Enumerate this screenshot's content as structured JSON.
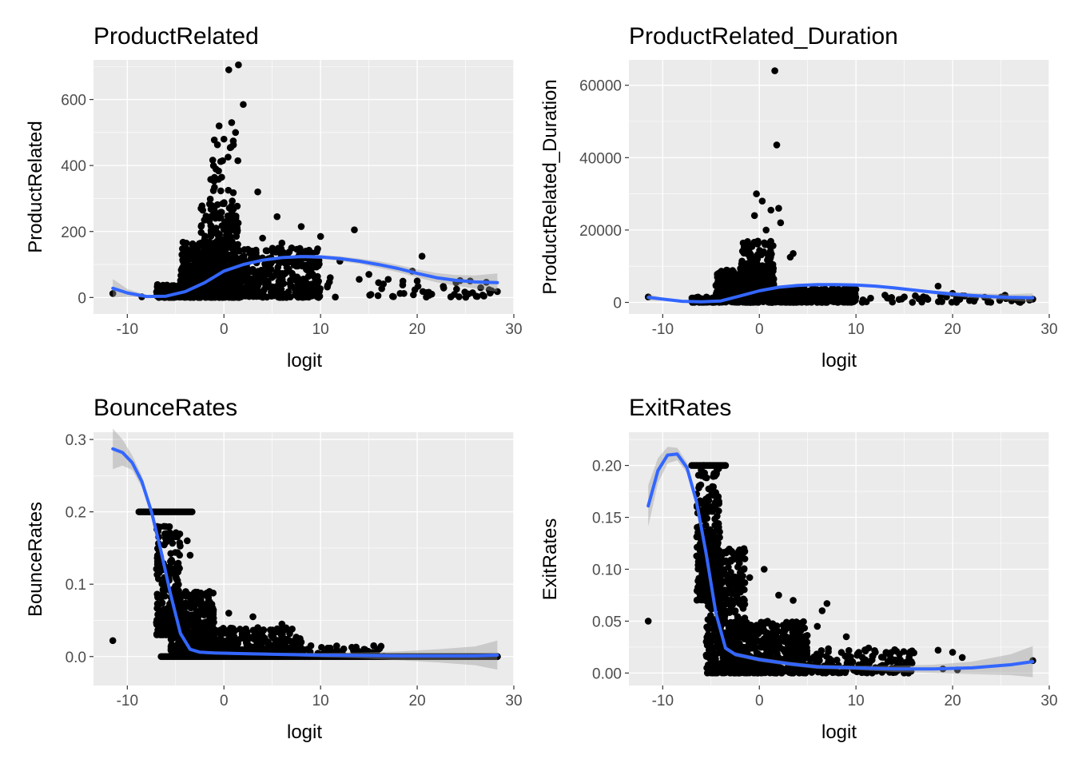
{
  "chart_data": [
    {
      "type": "scatter",
      "title": "ProductRelated",
      "xlabel": "logit",
      "ylabel": "ProductRelated",
      "xlim": [
        -13.5,
        30
      ],
      "ylim": [
        -50,
        720
      ],
      "x_ticks": [
        -10,
        0,
        10,
        20,
        30
      ],
      "x_tick_labels": [
        "-10",
        "0",
        "10",
        "20",
        "30"
      ],
      "y_ticks": [
        0,
        200,
        400,
        600
      ],
      "y_tick_labels": [
        "0",
        "200",
        "400",
        "600"
      ],
      "grid": true,
      "clusters": [
        {
          "x_range": [
            -4.5,
            1.5
          ],
          "y_range": [
            0,
            170
          ],
          "count": 520
        },
        {
          "x_range": [
            -2.5,
            1.5
          ],
          "y_range": [
            40,
            300
          ],
          "count": 230
        },
        {
          "x_range": [
            -1.5,
            1.5
          ],
          "y_range": [
            150,
            480
          ],
          "count": 60
        },
        {
          "x_range": [
            -7,
            -4.5
          ],
          "y_range": [
            0,
            40
          ],
          "count": 90
        },
        {
          "x_range": [
            1,
            10
          ],
          "y_range": [
            0,
            150
          ],
          "count": 320
        },
        {
          "x_range": [
            9,
            28
          ],
          "y_range": [
            0,
            60
          ],
          "count": 45
        }
      ],
      "points": [
        {
          "x": -11.5,
          "y": 12
        },
        {
          "x": -8.5,
          "y": 2
        },
        {
          "x": 0.5,
          "y": 690
        },
        {
          "x": 1.5,
          "y": 705
        },
        {
          "x": 2,
          "y": 585
        },
        {
          "x": -0.5,
          "y": 520
        },
        {
          "x": 0.8,
          "y": 530
        },
        {
          "x": 1.2,
          "y": 500
        },
        {
          "x": 0,
          "y": 480
        },
        {
          "x": 3.5,
          "y": 320
        },
        {
          "x": 5.5,
          "y": 245
        },
        {
          "x": 8,
          "y": 215
        },
        {
          "x": 13.5,
          "y": 205
        },
        {
          "x": 10,
          "y": 185
        },
        {
          "x": 4,
          "y": 180
        },
        {
          "x": 6,
          "y": 165
        },
        {
          "x": 7,
          "y": 150
        },
        {
          "x": 12,
          "y": 110
        },
        {
          "x": 15,
          "y": 70
        },
        {
          "x": 16,
          "y": 45
        },
        {
          "x": 17,
          "y": 55
        },
        {
          "x": 19.5,
          "y": 80
        },
        {
          "x": 20,
          "y": 50
        },
        {
          "x": 20.5,
          "y": 125
        },
        {
          "x": 21,
          "y": 15
        },
        {
          "x": 21.5,
          "y": 10
        },
        {
          "x": 28.3,
          "y": 18
        },
        {
          "x": 18.5,
          "y": 38
        },
        {
          "x": 14,
          "y": 55
        },
        {
          "x": 11,
          "y": 60
        }
      ],
      "series": [
        {
          "name": "smooth",
          "color": "#3366ff",
          "x": [
            -11.5,
            -10,
            -8,
            -6,
            -4,
            -2,
            0,
            2,
            4,
            6,
            8,
            10,
            12,
            14,
            16,
            18,
            20,
            22,
            24,
            26,
            28.3
          ],
          "y": [
            28,
            14,
            3,
            4,
            18,
            45,
            80,
            100,
            113,
            121,
            124,
            123,
            118,
            110,
            100,
            88,
            73,
            60,
            52,
            47,
            45
          ],
          "se_half_width": [
            28,
            12,
            4,
            3,
            3,
            3,
            3,
            3,
            4,
            4,
            5,
            6,
            7,
            8,
            10,
            11,
            12,
            14,
            16,
            20,
            28
          ]
        }
      ]
    },
    {
      "type": "scatter",
      "title": "ProductRelated_Duration",
      "xlabel": "logit",
      "ylabel": "ProductRelated_Duration",
      "xlim": [
        -13.5,
        30
      ],
      "ylim": [
        -3200,
        67000
      ],
      "x_ticks": [
        -10,
        0,
        10,
        20,
        30
      ],
      "x_tick_labels": [
        "-10",
        "0",
        "10",
        "20",
        "30"
      ],
      "y_ticks": [
        0,
        20000,
        40000,
        60000
      ],
      "y_tick_labels": [
        "0",
        "20000",
        "40000",
        "60000"
      ],
      "grid": true,
      "clusters": [
        {
          "x_range": [
            -4.5,
            1.5
          ],
          "y_range": [
            0,
            9000
          ],
          "count": 460
        },
        {
          "x_range": [
            -2,
            1.5
          ],
          "y_range": [
            4000,
            17000
          ],
          "count": 160
        },
        {
          "x_range": [
            -7,
            -4.5
          ],
          "y_range": [
            0,
            1500
          ],
          "count": 80
        },
        {
          "x_range": [
            1,
            10
          ],
          "y_range": [
            0,
            4000
          ],
          "count": 300
        },
        {
          "x_range": [
            9,
            28
          ],
          "y_range": [
            0,
            2000
          ],
          "count": 45
        }
      ],
      "points": [
        {
          "x": -11.5,
          "y": 1500
        },
        {
          "x": 1.6,
          "y": 64000
        },
        {
          "x": 1.8,
          "y": 43500
        },
        {
          "x": -0.3,
          "y": 30000
        },
        {
          "x": 0.3,
          "y": 28000
        },
        {
          "x": -0.5,
          "y": 24000
        },
        {
          "x": 1.2,
          "y": 25500
        },
        {
          "x": 2,
          "y": 26000
        },
        {
          "x": 2.2,
          "y": 22000
        },
        {
          "x": 0.7,
          "y": 20000
        },
        {
          "x": 3.5,
          "y": 13500
        },
        {
          "x": 3.2,
          "y": 12500
        },
        {
          "x": 18.5,
          "y": 4500
        },
        {
          "x": 20,
          "y": 2500
        },
        {
          "x": 15,
          "y": 1500
        },
        {
          "x": 13,
          "y": 2000
        },
        {
          "x": 16.5,
          "y": 1000
        },
        {
          "x": 21,
          "y": 1800
        },
        {
          "x": 28.3,
          "y": 900
        }
      ],
      "series": [
        {
          "name": "smooth",
          "color": "#3366ff",
          "x": [
            -11.5,
            -10,
            -8,
            -6,
            -4,
            -2,
            0,
            2,
            4,
            6,
            8,
            10,
            12,
            14,
            16,
            18,
            20,
            22,
            24,
            26,
            28.3
          ],
          "y": [
            1400,
            900,
            300,
            150,
            400,
            1800,
            3200,
            4200,
            4700,
            4900,
            4900,
            4800,
            4500,
            4000,
            3400,
            2800,
            2300,
            1900,
            1600,
            1400,
            1300
          ],
          "se_half_width": [
            900,
            400,
            150,
            100,
            100,
            100,
            150,
            150,
            200,
            200,
            250,
            300,
            350,
            400,
            450,
            500,
            600,
            700,
            800,
            900,
            1200
          ]
        }
      ]
    },
    {
      "type": "scatter",
      "title": "BounceRates",
      "xlabel": "logit",
      "ylabel": "BounceRates",
      "xlim": [
        -13.5,
        30
      ],
      "ylim": [
        -0.04,
        0.31
      ],
      "x_ticks": [
        -10,
        0,
        10,
        20,
        30
      ],
      "x_tick_labels": [
        "-10",
        "0",
        "10",
        "20",
        "30"
      ],
      "y_ticks": [
        0.0,
        0.1,
        0.2,
        0.3
      ],
      "y_tick_labels": [
        "0.0",
        "0.1",
        "0.2",
        "0.3"
      ],
      "grid": true,
      "clusters": [
        {
          "x_range": [
            -7,
            -4.5
          ],
          "y_range": [
            0.03,
            0.18
          ],
          "count": 220
        },
        {
          "x_range": [
            -5.5,
            -1
          ],
          "y_range": [
            0,
            0.09
          ],
          "count": 420
        },
        {
          "x_range": [
            -3,
            8
          ],
          "y_range": [
            0,
            0.04
          ],
          "count": 340
        },
        {
          "x_range": [
            0,
            17
          ],
          "y_range": [
            0,
            0.015
          ],
          "count": 120
        }
      ],
      "line_segments": [
        {
          "x_start": -8.8,
          "x_end": -3.3,
          "y": 0.2
        },
        {
          "x_start": -6.5,
          "x_end": 28.3,
          "y": 0.0
        }
      ],
      "points": [
        {
          "x": -11.5,
          "y": 0.022
        },
        {
          "x": -6.2,
          "y": 0.18
        },
        {
          "x": -5.8,
          "y": 0.165
        },
        {
          "x": -3.8,
          "y": 0.16
        },
        {
          "x": -3.5,
          "y": 0.14
        },
        {
          "x": -1.5,
          "y": 0.09
        },
        {
          "x": 0.5,
          "y": 0.06
        },
        {
          "x": 3,
          "y": 0.055
        },
        {
          "x": 3.5,
          "y": 0.04
        },
        {
          "x": 6,
          "y": 0.045
        },
        {
          "x": 8,
          "y": 0.02
        },
        {
          "x": 9,
          "y": 0.015
        },
        {
          "x": 14.5,
          "y": 0.01
        },
        {
          "x": 15.5,
          "y": 0.015
        },
        {
          "x": 28.3,
          "y": 0.0
        }
      ],
      "series": [
        {
          "name": "smooth",
          "color": "#3366ff",
          "x": [
            -11.5,
            -10.5,
            -9.5,
            -8.5,
            -7.5,
            -6.5,
            -5.5,
            -4.5,
            -3.5,
            -2.5,
            -1,
            2,
            6,
            10,
            14,
            18,
            22,
            26,
            28.3
          ],
          "y": [
            0.287,
            0.282,
            0.268,
            0.242,
            0.2,
            0.145,
            0.085,
            0.032,
            0.01,
            0.006,
            0.005,
            0.004,
            0.003,
            0.002,
            0.0015,
            0.001,
            0.001,
            0.001,
            0.002
          ],
          "se_half_width": [
            0.028,
            0.018,
            0.01,
            0.008,
            0.006,
            0.005,
            0.004,
            0.003,
            0.002,
            0.002,
            0.002,
            0.002,
            0.002,
            0.003,
            0.004,
            0.006,
            0.009,
            0.013,
            0.02
          ]
        }
      ]
    },
    {
      "type": "scatter",
      "title": "ExitRates",
      "xlabel": "logit",
      "ylabel": "ExitRates",
      "xlim": [
        -13.5,
        30
      ],
      "ylim": [
        -0.012,
        0.232
      ],
      "x_ticks": [
        -10,
        0,
        10,
        20,
        30
      ],
      "x_tick_labels": [
        "-10",
        "0",
        "10",
        "20",
        "30"
      ],
      "y_ticks": [
        0.0,
        0.05,
        0.1,
        0.15,
        0.2
      ],
      "y_tick_labels": [
        "0.00",
        "0.05",
        "0.10",
        "0.15",
        "0.20"
      ],
      "grid": true,
      "clusters": [
        {
          "x_range": [
            -6.5,
            -4
          ],
          "y_range": [
            0.07,
            0.2
          ],
          "count": 300
        },
        {
          "x_range": [
            -5.5,
            -1.5
          ],
          "y_range": [
            0,
            0.12
          ],
          "count": 480
        },
        {
          "x_range": [
            -3,
            5
          ],
          "y_range": [
            0,
            0.05
          ],
          "count": 460
        },
        {
          "x_range": [
            3,
            16
          ],
          "y_range": [
            0,
            0.025
          ],
          "count": 200
        }
      ],
      "line_segments": [
        {
          "x_start": -7,
          "x_end": -3.5,
          "y": 0.2
        }
      ],
      "points": [
        {
          "x": -11.5,
          "y": 0.05
        },
        {
          "x": -1.5,
          "y": 0.11
        },
        {
          "x": 0.5,
          "y": 0.1
        },
        {
          "x": -1,
          "y": 0.092
        },
        {
          "x": 2,
          "y": 0.075
        },
        {
          "x": 3.5,
          "y": 0.07
        },
        {
          "x": 6.5,
          "y": 0.06
        },
        {
          "x": 7,
          "y": 0.067
        },
        {
          "x": 6,
          "y": 0.045
        },
        {
          "x": 9,
          "y": 0.035
        },
        {
          "x": 12,
          "y": 0.02
        },
        {
          "x": 14.5,
          "y": 0.018
        },
        {
          "x": 15.5,
          "y": 0.015
        },
        {
          "x": 18.5,
          "y": 0.022
        },
        {
          "x": 20,
          "y": 0.02
        },
        {
          "x": 21,
          "y": 0.015
        },
        {
          "x": 20.5,
          "y": 0.003
        },
        {
          "x": 19,
          "y": 0.004
        },
        {
          "x": 28.3,
          "y": 0.012
        }
      ],
      "series": [
        {
          "name": "smooth",
          "color": "#3366ff",
          "x": [
            -11.5,
            -10.5,
            -9.5,
            -8.5,
            -7.5,
            -6.5,
            -5.5,
            -4.5,
            -3.5,
            -2.5,
            -1.5,
            0,
            3,
            6,
            10,
            14,
            18,
            22,
            26,
            28.3
          ],
          "y": [
            0.161,
            0.195,
            0.21,
            0.211,
            0.198,
            0.165,
            0.115,
            0.058,
            0.024,
            0.018,
            0.016,
            0.013,
            0.009,
            0.006,
            0.005,
            0.004,
            0.004,
            0.005,
            0.008,
            0.011
          ],
          "se_half_width": [
            0.02,
            0.012,
            0.008,
            0.006,
            0.005,
            0.004,
            0.003,
            0.003,
            0.002,
            0.002,
            0.002,
            0.002,
            0.002,
            0.002,
            0.002,
            0.003,
            0.004,
            0.006,
            0.01,
            0.015
          ]
        }
      ]
    }
  ]
}
